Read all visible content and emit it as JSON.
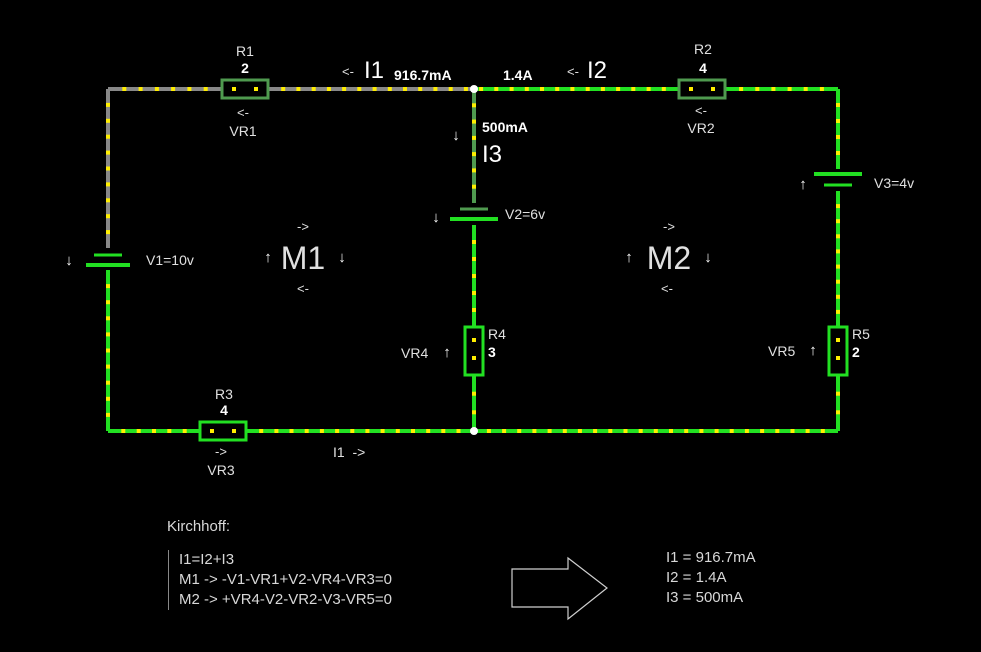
{
  "colors": {
    "wire_active": "#22e022",
    "wire_idle": "#888888",
    "dot": "#ffee00",
    "resistor_dim": "#4f9a4f"
  },
  "components": {
    "r1": {
      "name": "R1",
      "value": "2",
      "vr": "VR1",
      "arrow": "<-"
    },
    "r2": {
      "name": "R2",
      "value": "4",
      "vr": "VR2",
      "arrow": "<-"
    },
    "r3": {
      "name": "R3",
      "value": "4",
      "vr": "VR3",
      "arrow": "->"
    },
    "r4": {
      "name": "R4",
      "value": "3",
      "vr": "VR4"
    },
    "r5": {
      "name": "R5",
      "value": "2",
      "vr": "VR5"
    },
    "v1": "V1=10v",
    "v2": "V2=6v",
    "v3": "V3=4v"
  },
  "currents": {
    "i1_label": "I1",
    "i1_value": "916.7mA",
    "i1_arrow": "<-",
    "i2_label": "I2",
    "i2_value": "1.4A",
    "i2_arrow": "<-",
    "i3_label": "I3",
    "i3_value": "500mA",
    "i1_bottom": "I1  ->"
  },
  "meshes": {
    "m1": {
      "label": "M1",
      "arrow_top": "->",
      "arrow_bottom": "<-"
    },
    "m2": {
      "label": "M2",
      "arrow_top": "->",
      "arrow_bottom": "<-"
    }
  },
  "glyphs": {
    "up": "↑",
    "down": "↓"
  },
  "kirchhoff": {
    "title": "Kirchhoff:",
    "equations": [
      "I1=I2+I3",
      "M1 ->  -V1-VR1+V2-VR4-VR3=0",
      "M2 -> +VR4-V2-VR2-V3-VR5=0"
    ]
  },
  "results": [
    "I1 = 916.7mA",
    "I2 = 1.4A",
    "I3 = 500mA"
  ]
}
